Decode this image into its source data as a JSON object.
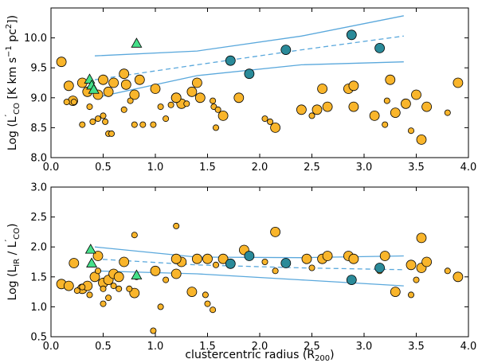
{
  "chart_data": [
    {
      "type": "scatter",
      "panel": "top",
      "ylabel_main": "Log (L",
      "ylabel_sub": "CO",
      "ylabel_prime": "′",
      "ylabel_units": " [K km s",
      "ylabel_sup1": "−1",
      "ylabel_pc": " pc",
      "ylabel_sup2": "2",
      "ylabel_end": "])",
      "xlabel": "",
      "xlim": [
        0,
        4
      ],
      "ylim": [
        8.0,
        10.5
      ],
      "xticks": [
        "0.0",
        "0.5",
        "1.0",
        "1.5",
        "2.0",
        "2.5",
        "3.0",
        "3.5",
        "4.0"
      ],
      "xtick_values": [
        0,
        0.5,
        1,
        1.5,
        2,
        2.5,
        3,
        3.5,
        4
      ],
      "yticks": [
        "8.0",
        "8.5",
        "9.0",
        "9.5",
        "10.0"
      ],
      "ytick_values": [
        8.0,
        8.5,
        9.0,
        9.5,
        10.0
      ],
      "colors": {
        "orange": "#f9b52b",
        "teal": "#2a8a99",
        "green": "#45e08a",
        "line": "#5aa8dc"
      },
      "series": [
        {
          "name": "orange-large",
          "marker": "circle-large",
          "color": "orange",
          "points": [
            [
              0.1,
              9.6
            ],
            [
              0.17,
              9.2
            ],
            [
              0.21,
              8.95
            ],
            [
              0.3,
              9.25
            ],
            [
              0.35,
              9.1
            ],
            [
              0.45,
              9.05
            ],
            [
              0.5,
              9.3
            ],
            [
              0.55,
              9.1
            ],
            [
              0.6,
              9.25
            ],
            [
              0.7,
              9.4
            ],
            [
              0.72,
              9.22
            ],
            [
              0.8,
              9.05
            ],
            [
              0.85,
              9.3
            ],
            [
              1.0,
              9.15
            ],
            [
              1.2,
              9.0
            ],
            [
              1.25,
              8.9
            ],
            [
              1.35,
              9.1
            ],
            [
              1.4,
              9.25
            ],
            [
              1.43,
              9.0
            ],
            [
              1.65,
              8.7
            ],
            [
              1.8,
              9.0
            ],
            [
              2.15,
              8.5
            ],
            [
              2.4,
              8.8
            ],
            [
              2.55,
              8.8
            ],
            [
              2.6,
              9.15
            ],
            [
              2.65,
              8.85
            ],
            [
              2.85,
              9.15
            ],
            [
              2.9,
              9.2
            ],
            [
              2.9,
              8.85
            ],
            [
              3.1,
              8.7
            ],
            [
              3.25,
              9.3
            ],
            [
              3.3,
              8.75
            ],
            [
              3.4,
              8.9
            ],
            [
              3.5,
              9.05
            ],
            [
              3.55,
              8.3
            ],
            [
              3.6,
              8.85
            ],
            [
              3.9,
              9.25
            ],
            [
              1.2,
              9.0
            ]
          ]
        },
        {
          "name": "orange-small",
          "marker": "circle-small",
          "color": "orange",
          "points": [
            [
              0.15,
              8.93
            ],
            [
              0.22,
              8.93
            ],
            [
              0.3,
              8.55
            ],
            [
              0.37,
              8.85
            ],
            [
              0.4,
              8.6
            ],
            [
              0.45,
              8.65
            ],
            [
              0.5,
              8.7
            ],
            [
              0.52,
              8.6
            ],
            [
              0.55,
              8.4
            ],
            [
              0.58,
              8.4
            ],
            [
              0.7,
              8.8
            ],
            [
              0.76,
              8.95
            ],
            [
              0.8,
              8.55
            ],
            [
              0.88,
              8.55
            ],
            [
              0.98,
              8.55
            ],
            [
              1.05,
              8.85
            ],
            [
              1.1,
              8.65
            ],
            [
              1.15,
              8.88
            ],
            [
              1.3,
              8.9
            ],
            [
              1.55,
              8.95
            ],
            [
              1.56,
              8.85
            ],
            [
              1.58,
              8.5
            ],
            [
              1.6,
              8.8
            ],
            [
              2.05,
              8.65
            ],
            [
              2.1,
              8.6
            ],
            [
              2.5,
              8.7
            ],
            [
              3.2,
              8.55
            ],
            [
              3.22,
              8.95
            ],
            [
              3.45,
              8.45
            ],
            [
              3.8,
              8.75
            ]
          ]
        },
        {
          "name": "teal",
          "marker": "circle-large",
          "color": "teal",
          "points": [
            [
              1.72,
              9.62
            ],
            [
              1.9,
              9.4
            ],
            [
              2.25,
              9.8
            ],
            [
              2.88,
              10.05
            ],
            [
              3.15,
              9.83
            ]
          ]
        },
        {
          "name": "green-triangles",
          "marker": "triangle",
          "color": "green",
          "points": [
            [
              0.37,
              9.3
            ],
            [
              0.39,
              9.2
            ],
            [
              0.41,
              9.13
            ],
            [
              0.82,
              9.9
            ]
          ]
        }
      ],
      "lines": [
        {
          "name": "upper-solid",
          "style": "solid",
          "points": [
            [
              0.42,
              9.7
            ],
            [
              1.4,
              9.78
            ],
            [
              2.4,
              10.03
            ],
            [
              3.38,
              10.37
            ]
          ]
        },
        {
          "name": "median-dashed",
          "style": "dashed",
          "points": [
            [
              0.42,
              9.3
            ],
            [
              1.4,
              9.55
            ],
            [
              2.4,
              9.8
            ],
            [
              3.38,
              10.03
            ]
          ]
        },
        {
          "name": "lower-solid",
          "style": "solid",
          "points": [
            [
              0.42,
              9.0
            ],
            [
              1.4,
              9.37
            ],
            [
              2.4,
              9.55
            ],
            [
              3.38,
              9.6
            ]
          ]
        }
      ]
    },
    {
      "type": "scatter",
      "panel": "bottom",
      "ylabel_main": "Log (L",
      "ylabel_sub": "IR",
      "ylabel_mid": " / L",
      "ylabel_sub2": "CO",
      "ylabel_prime": "′",
      "ylabel_end": ")",
      "xlabel_main": "clustercentric radius (R",
      "xlabel_sub": "200",
      "xlabel_end": ")",
      "xlim": [
        0,
        4
      ],
      "ylim": [
        0.5,
        3.0
      ],
      "xticks": [
        "0.0",
        "0.5",
        "1.0",
        "1.5",
        "2.0",
        "2.5",
        "3.0",
        "3.5",
        "4.0"
      ],
      "xtick_values": [
        0,
        0.5,
        1,
        1.5,
        2,
        2.5,
        3,
        3.5,
        4
      ],
      "yticks": [
        "0.5",
        "1.0",
        "1.5",
        "2.0",
        "2.5",
        "3.0"
      ],
      "ytick_values": [
        0.5,
        1.0,
        1.5,
        2.0,
        2.5,
        3.0
      ],
      "series": [
        {
          "name": "orange-large",
          "marker": "circle-large",
          "color": "orange",
          "points": [
            [
              0.1,
              1.38
            ],
            [
              0.17,
              1.35
            ],
            [
              0.22,
              1.73
            ],
            [
              0.3,
              1.3
            ],
            [
              0.35,
              1.35
            ],
            [
              0.42,
              1.5
            ],
            [
              0.45,
              1.85
            ],
            [
              0.5,
              1.4
            ],
            [
              0.55,
              1.45
            ],
            [
              0.6,
              1.55
            ],
            [
              0.65,
              1.5
            ],
            [
              0.7,
              1.75
            ],
            [
              0.8,
              1.23
            ],
            [
              1.0,
              1.6
            ],
            [
              1.2,
              1.55
            ],
            [
              1.25,
              1.75
            ],
            [
              1.35,
              1.25
            ],
            [
              1.4,
              1.8
            ],
            [
              1.5,
              1.8
            ],
            [
              1.65,
              1.8
            ],
            [
              1.85,
              1.95
            ],
            [
              2.15,
              2.25
            ],
            [
              2.45,
              1.8
            ],
            [
              2.6,
              1.8
            ],
            [
              2.65,
              1.85
            ],
            [
              2.85,
              1.85
            ],
            [
              2.9,
              1.8
            ],
            [
              3.2,
              1.85
            ],
            [
              3.3,
              1.25
            ],
            [
              3.55,
              2.15
            ],
            [
              3.55,
              1.65
            ],
            [
              3.6,
              1.75
            ],
            [
              3.9,
              1.5
            ],
            [
              3.45,
              1.7
            ],
            [
              1.2,
              1.8
            ]
          ]
        },
        {
          "name": "orange-small",
          "marker": "circle-small",
          "color": "orange",
          "points": [
            [
              0.25,
              1.27
            ],
            [
              0.3,
              1.33
            ],
            [
              0.37,
              1.2
            ],
            [
              0.45,
              1.6
            ],
            [
              0.5,
              1.3
            ],
            [
              0.5,
              1.05
            ],
            [
              0.55,
              1.15
            ],
            [
              0.6,
              1.35
            ],
            [
              0.65,
              1.3
            ],
            [
              0.75,
              1.3
            ],
            [
              0.8,
              2.2
            ],
            [
              0.82,
              1.5
            ],
            [
              0.98,
              0.6
            ],
            [
              1.05,
              1.0
            ],
            [
              1.1,
              1.45
            ],
            [
              1.2,
              2.35
            ],
            [
              1.48,
              1.2
            ],
            [
              1.5,
              1.05
            ],
            [
              1.55,
              0.95
            ],
            [
              1.58,
              1.7
            ],
            [
              2.05,
              1.75
            ],
            [
              2.15,
              1.6
            ],
            [
              2.5,
              1.65
            ],
            [
              3.15,
              1.6
            ],
            [
              3.45,
              1.2
            ],
            [
              3.5,
              1.45
            ],
            [
              3.8,
              1.6
            ]
          ]
        },
        {
          "name": "teal",
          "marker": "circle-large",
          "color": "teal",
          "points": [
            [
              1.72,
              1.72
            ],
            [
              1.9,
              1.85
            ],
            [
              2.25,
              1.73
            ],
            [
              2.88,
              1.45
            ],
            [
              3.15,
              1.65
            ]
          ]
        },
        {
          "name": "green-triangles",
          "marker": "triangle",
          "color": "green",
          "points": [
            [
              0.38,
              1.95
            ],
            [
              0.39,
              1.72
            ],
            [
              0.82,
              1.52
            ]
          ]
        }
      ],
      "lines": [
        {
          "name": "upper-solid",
          "style": "solid",
          "points": [
            [
              0.42,
              2.0
            ],
            [
              1.4,
              1.83
            ],
            [
              2.4,
              1.82
            ],
            [
              3.38,
              1.85
            ]
          ]
        },
        {
          "name": "median-dashed",
          "style": "dashed",
          "points": [
            [
              0.42,
              1.8
            ],
            [
              1.4,
              1.7
            ],
            [
              2.4,
              1.65
            ],
            [
              3.38,
              1.62
            ]
          ]
        },
        {
          "name": "lower-solid",
          "style": "solid",
          "points": [
            [
              0.42,
              1.6
            ],
            [
              1.4,
              1.55
            ],
            [
              2.4,
              1.45
            ],
            [
              3.38,
              1.35
            ]
          ]
        }
      ]
    }
  ]
}
